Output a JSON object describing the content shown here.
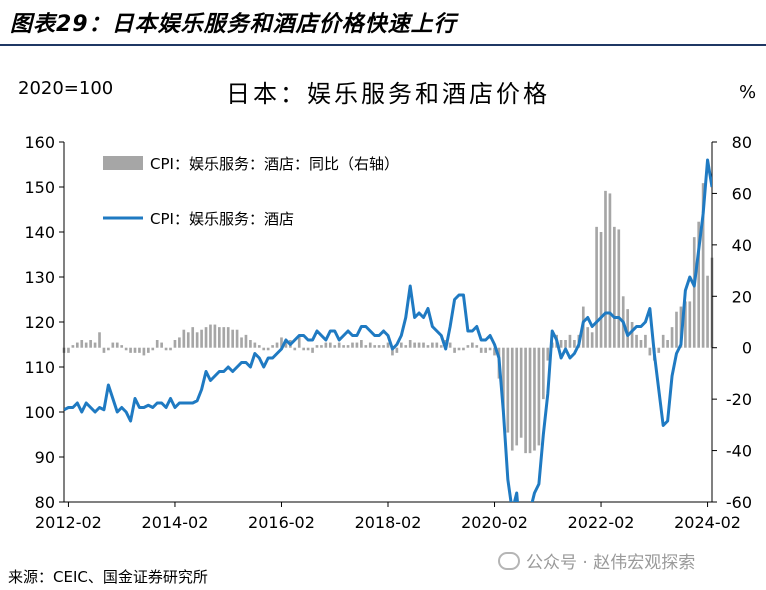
{
  "figure": {
    "title": "图表29：日本娱乐服务和酒店价格快速上行",
    "source": "来源：CEIC、国金证券研究所",
    "watermark": "公众号 · 赵伟宏观探索"
  },
  "chart_data": {
    "type": "bar+line",
    "title": "日本：娱乐服务和酒店价格",
    "left_axis_label": "2020=100",
    "right_axis_label": "%",
    "y_left_lim": [
      80,
      160
    ],
    "y_left_ticks": [
      "80",
      "90",
      "100",
      "110",
      "120",
      "130",
      "140",
      "150",
      "160"
    ],
    "y_right_lim": [
      -60,
      80
    ],
    "y_right_ticks": [
      "-60",
      "-40",
      "-20",
      "0",
      "20",
      "40",
      "60",
      "80"
    ],
    "x_range": [
      "2012-01",
      "2024-03"
    ],
    "x_ticks": [
      "2012-02",
      "2014-02",
      "2016-02",
      "2018-02",
      "2020-02",
      "2022-02",
      "2024-02"
    ],
    "grid": false,
    "legend_position": "top-left",
    "colors": {
      "bar": "#a6a6a6",
      "line": "#1f7ac2",
      "axis": "#000000"
    },
    "series": [
      {
        "name": "CPI：娱乐服务：酒店：同比（右轴）",
        "type": "bar",
        "axis": "right",
        "points": [
          [
            "2012-01",
            -2
          ],
          [
            "2012-02",
            -2
          ],
          [
            "2012-03",
            1
          ],
          [
            "2012-04",
            2
          ],
          [
            "2012-05",
            3
          ],
          [
            "2012-06",
            2
          ],
          [
            "2012-07",
            3
          ],
          [
            "2012-08",
            2
          ],
          [
            "2012-09",
            6
          ],
          [
            "2012-10",
            -2
          ],
          [
            "2012-11",
            -1
          ],
          [
            "2012-12",
            2
          ],
          [
            "2013-01",
            2
          ],
          [
            "2013-02",
            1
          ],
          [
            "2013-03",
            -1
          ],
          [
            "2013-04",
            -2
          ],
          [
            "2013-05",
            -2
          ],
          [
            "2013-06",
            -2
          ],
          [
            "2013-07",
            -3
          ],
          [
            "2013-08",
            -2
          ],
          [
            "2013-09",
            -1
          ],
          [
            "2013-10",
            3
          ],
          [
            "2013-11",
            2
          ],
          [
            "2013-12",
            -1
          ],
          [
            "2014-01",
            -1
          ],
          [
            "2014-02",
            3
          ],
          [
            "2014-03",
            4
          ],
          [
            "2014-04",
            7
          ],
          [
            "2014-05",
            6
          ],
          [
            "2014-06",
            8
          ],
          [
            "2014-07",
            6
          ],
          [
            "2014-08",
            7
          ],
          [
            "2014-09",
            8
          ],
          [
            "2014-10",
            9
          ],
          [
            "2014-11",
            9
          ],
          [
            "2014-12",
            8
          ],
          [
            "2015-01",
            8
          ],
          [
            "2015-02",
            8
          ],
          [
            "2015-03",
            7
          ],
          [
            "2015-04",
            7
          ],
          [
            "2015-05",
            4
          ],
          [
            "2015-06",
            5
          ],
          [
            "2015-07",
            3
          ],
          [
            "2015-08",
            2
          ],
          [
            "2015-09",
            1
          ],
          [
            "2015-10",
            -1
          ],
          [
            "2015-11",
            -1
          ],
          [
            "2015-12",
            1
          ],
          [
            "2016-01",
            2
          ],
          [
            "2016-02",
            4
          ],
          [
            "2016-03",
            2
          ],
          [
            "2016-04",
            3
          ],
          [
            "2016-05",
            -1
          ],
          [
            "2016-06",
            5
          ],
          [
            "2016-07",
            -1
          ],
          [
            "2016-08",
            -1
          ],
          [
            "2016-09",
            -2
          ],
          [
            "2016-10",
            1
          ],
          [
            "2016-11",
            1
          ],
          [
            "2016-12",
            2
          ],
          [
            "2017-01",
            2
          ],
          [
            "2017-02",
            1
          ],
          [
            "2017-03",
            2
          ],
          [
            "2017-04",
            1
          ],
          [
            "2017-05",
            1
          ],
          [
            "2017-06",
            2
          ],
          [
            "2017-07",
            2
          ],
          [
            "2017-08",
            3
          ],
          [
            "2017-09",
            1
          ],
          [
            "2017-10",
            2
          ],
          [
            "2017-11",
            1
          ],
          [
            "2017-12",
            1
          ],
          [
            "2018-01",
            1
          ],
          [
            "2018-02",
            2
          ],
          [
            "2018-03",
            -3
          ],
          [
            "2018-04",
            -2
          ],
          [
            "2018-05",
            2
          ],
          [
            "2018-06",
            1
          ],
          [
            "2018-07",
            3
          ],
          [
            "2018-08",
            2
          ],
          [
            "2018-09",
            2
          ],
          [
            "2018-10",
            2
          ],
          [
            "2018-11",
            1
          ],
          [
            "2018-12",
            2
          ],
          [
            "2019-01",
            2
          ],
          [
            "2019-02",
            1
          ],
          [
            "2019-03",
            3
          ],
          [
            "2019-04",
            2
          ],
          [
            "2019-05",
            -2
          ],
          [
            "2019-06",
            -1
          ],
          [
            "2019-07",
            -1
          ],
          [
            "2019-08",
            1
          ],
          [
            "2019-09",
            2
          ],
          [
            "2019-10",
            1
          ],
          [
            "2019-11",
            -2
          ],
          [
            "2019-12",
            -2
          ],
          [
            "2020-01",
            -1
          ],
          [
            "2020-02",
            -3
          ],
          [
            "2020-03",
            -12
          ],
          [
            "2020-04",
            -25
          ],
          [
            "2020-05",
            -33
          ],
          [
            "2020-06",
            -40
          ],
          [
            "2020-07",
            -38
          ],
          [
            "2020-08",
            -35
          ],
          [
            "2020-09",
            -41
          ],
          [
            "2020-10",
            -41
          ],
          [
            "2020-11",
            -40
          ],
          [
            "2020-12",
            -38
          ],
          [
            "2021-01",
            -20
          ],
          [
            "2021-02",
            -5
          ],
          [
            "2021-03",
            2
          ],
          [
            "2021-04",
            5
          ],
          [
            "2021-05",
            3
          ],
          [
            "2021-06",
            3
          ],
          [
            "2021-07",
            5
          ],
          [
            "2021-08",
            3
          ],
          [
            "2021-09",
            5
          ],
          [
            "2021-10",
            16
          ],
          [
            "2021-11",
            8
          ],
          [
            "2021-12",
            6
          ],
          [
            "2022-01",
            47
          ],
          [
            "2022-02",
            45
          ],
          [
            "2022-03",
            61
          ],
          [
            "2022-04",
            60
          ],
          [
            "2022-05",
            47
          ],
          [
            "2022-06",
            46
          ],
          [
            "2022-07",
            20
          ],
          [
            "2022-08",
            15
          ],
          [
            "2022-09",
            10
          ],
          [
            "2022-10",
            5
          ],
          [
            "2022-11",
            3
          ],
          [
            "2022-12",
            5
          ],
          [
            "2023-01",
            -3
          ],
          [
            "2023-02",
            -5
          ],
          [
            "2023-03",
            -2
          ],
          [
            "2023-04",
            5
          ],
          [
            "2023-05",
            3
          ],
          [
            "2023-06",
            8
          ],
          [
            "2023-07",
            14
          ],
          [
            "2023-08",
            16
          ],
          [
            "2023-09",
            18
          ],
          [
            "2023-10",
            18
          ],
          [
            "2023-11",
            43
          ],
          [
            "2023-12",
            49
          ],
          [
            "2024-01",
            64
          ],
          [
            "2024-02",
            28
          ],
          [
            "2024-03",
            35
          ]
        ]
      },
      {
        "name": "CPI：娱乐服务：酒店",
        "type": "line",
        "axis": "left",
        "points": [
          [
            "2012-01",
            100.5
          ],
          [
            "2012-02",
            101
          ],
          [
            "2012-03",
            101
          ],
          [
            "2012-04",
            102
          ],
          [
            "2012-05",
            100
          ],
          [
            "2012-06",
            102
          ],
          [
            "2012-07",
            101
          ],
          [
            "2012-08",
            100
          ],
          [
            "2012-09",
            101
          ],
          [
            "2012-10",
            100.5
          ],
          [
            "2012-11",
            106
          ],
          [
            "2012-12",
            103
          ],
          [
            "2013-01",
            100
          ],
          [
            "2013-02",
            101
          ],
          [
            "2013-03",
            100
          ],
          [
            "2013-04",
            98
          ],
          [
            "2013-05",
            103
          ],
          [
            "2013-06",
            101
          ],
          [
            "2013-07",
            101
          ],
          [
            "2013-08",
            101.5
          ],
          [
            "2013-09",
            101
          ],
          [
            "2013-10",
            102
          ],
          [
            "2013-11",
            102
          ],
          [
            "2013-12",
            101
          ],
          [
            "2014-01",
            103
          ],
          [
            "2014-02",
            101
          ],
          [
            "2014-03",
            102
          ],
          [
            "2014-04",
            102
          ],
          [
            "2014-05",
            102
          ],
          [
            "2014-06",
            102
          ],
          [
            "2014-07",
            102.5
          ],
          [
            "2014-08",
            105
          ],
          [
            "2014-09",
            109
          ],
          [
            "2014-10",
            107
          ],
          [
            "2014-11",
            108
          ],
          [
            "2014-12",
            109
          ],
          [
            "2015-01",
            109
          ],
          [
            "2015-02",
            110
          ],
          [
            "2015-03",
            109
          ],
          [
            "2015-04",
            110
          ],
          [
            "2015-05",
            111
          ],
          [
            "2015-06",
            111
          ],
          [
            "2015-07",
            110
          ],
          [
            "2015-08",
            113
          ],
          [
            "2015-09",
            112
          ],
          [
            "2015-10",
            110
          ],
          [
            "2015-11",
            112
          ],
          [
            "2015-12",
            112
          ],
          [
            "2016-01",
            113
          ],
          [
            "2016-02",
            114
          ],
          [
            "2016-03",
            116
          ],
          [
            "2016-04",
            115
          ],
          [
            "2016-05",
            116
          ],
          [
            "2016-06",
            117
          ],
          [
            "2016-07",
            117
          ],
          [
            "2016-08",
            116
          ],
          [
            "2016-09",
            116
          ],
          [
            "2016-10",
            118
          ],
          [
            "2016-11",
            117
          ],
          [
            "2016-12",
            116
          ],
          [
            "2017-01",
            118
          ],
          [
            "2017-02",
            118
          ],
          [
            "2017-03",
            116
          ],
          [
            "2017-04",
            117
          ],
          [
            "2017-05",
            118
          ],
          [
            "2017-06",
            117
          ],
          [
            "2017-07",
            117
          ],
          [
            "2017-08",
            119
          ],
          [
            "2017-09",
            119
          ],
          [
            "2017-10",
            118
          ],
          [
            "2017-11",
            117
          ],
          [
            "2017-12",
            117
          ],
          [
            "2018-01",
            118
          ],
          [
            "2018-02",
            117
          ],
          [
            "2018-03",
            114
          ],
          [
            "2018-04",
            115
          ],
          [
            "2018-05",
            117
          ],
          [
            "2018-06",
            121
          ],
          [
            "2018-07",
            128
          ],
          [
            "2018-08",
            121
          ],
          [
            "2018-09",
            122
          ],
          [
            "2018-10",
            121
          ],
          [
            "2018-11",
            123
          ],
          [
            "2018-12",
            119
          ],
          [
            "2019-01",
            118
          ],
          [
            "2019-02",
            117
          ],
          [
            "2019-03",
            114
          ],
          [
            "2019-04",
            119
          ],
          [
            "2019-05",
            125
          ],
          [
            "2019-06",
            126
          ],
          [
            "2019-07",
            126
          ],
          [
            "2019-08",
            118
          ],
          [
            "2019-09",
            118
          ],
          [
            "2019-10",
            119
          ],
          [
            "2019-11",
            116
          ],
          [
            "2019-12",
            116
          ],
          [
            "2020-01",
            117
          ],
          [
            "2020-02",
            115
          ],
          [
            "2020-03",
            112
          ],
          [
            "2020-04",
            100
          ],
          [
            "2020-05",
            85
          ],
          [
            "2020-06",
            78
          ],
          [
            "2020-07",
            82
          ],
          [
            "2020-08",
            70
          ],
          [
            "2020-09",
            70
          ],
          [
            "2020-10",
            78
          ],
          [
            "2020-11",
            82
          ],
          [
            "2020-12",
            84
          ],
          [
            "2021-01",
            95
          ],
          [
            "2021-02",
            104
          ],
          [
            "2021-03",
            118
          ],
          [
            "2021-04",
            116
          ],
          [
            "2021-05",
            112
          ],
          [
            "2021-06",
            114
          ],
          [
            "2021-07",
            112
          ],
          [
            "2021-08",
            113
          ],
          [
            "2021-09",
            115
          ],
          [
            "2021-10",
            120
          ],
          [
            "2021-11",
            121
          ],
          [
            "2021-12",
            119
          ],
          [
            "2022-01",
            120
          ],
          [
            "2022-02",
            121
          ],
          [
            "2022-03",
            122
          ],
          [
            "2022-04",
            122
          ],
          [
            "2022-05",
            121
          ],
          [
            "2022-06",
            121
          ],
          [
            "2022-07",
            120
          ],
          [
            "2022-08",
            117
          ],
          [
            "2022-09",
            118
          ],
          [
            "2022-10",
            119
          ],
          [
            "2022-11",
            119
          ],
          [
            "2022-12",
            120
          ],
          [
            "2023-01",
            123
          ],
          [
            "2023-02",
            113
          ],
          [
            "2023-03",
            105
          ],
          [
            "2023-04",
            97
          ],
          [
            "2023-05",
            98
          ],
          [
            "2023-06",
            108
          ],
          [
            "2023-07",
            113
          ],
          [
            "2023-08",
            115
          ],
          [
            "2023-09",
            127
          ],
          [
            "2023-10",
            130
          ],
          [
            "2023-11",
            128
          ],
          [
            "2023-12",
            136
          ],
          [
            "2024-01",
            144
          ],
          [
            "2024-02",
            156
          ],
          [
            "2024-03",
            150
          ]
        ]
      }
    ]
  }
}
